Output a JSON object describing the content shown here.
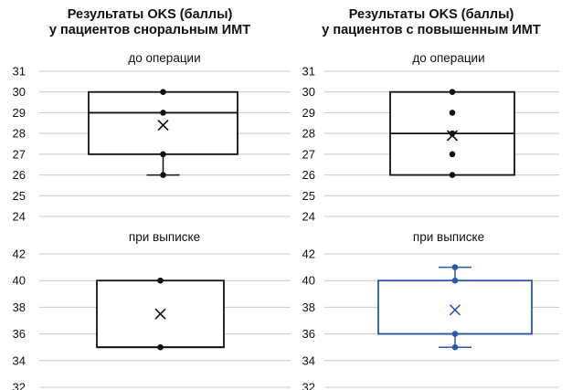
{
  "titles": [
    {
      "line1": "Результаты OKS (баллы)",
      "line2": "у пациентов сноральным ИМТ"
    },
    {
      "line1": "Результаты OKS (баллы)",
      "line2": "у пациентов с повышенным ИМТ"
    }
  ],
  "colors": {
    "black": "#111111",
    "blue": "#2b57a6",
    "grid": "#c8c8c8"
  },
  "chart_data": [
    {
      "type": "box",
      "title": "до операции",
      "group": "у пациентов с норальным ИМТ",
      "ylim": [
        24,
        31
      ],
      "yticks": [
        24,
        25,
        26,
        27,
        28,
        29,
        30,
        31
      ],
      "box": {
        "min": 26,
        "q1": 27,
        "median": 29,
        "q3": 30,
        "max": 30,
        "mean": 28.4
      },
      "points": [
        30,
        29,
        27,
        26
      ],
      "grid": true,
      "color": "#111111"
    },
    {
      "type": "box",
      "title": "до операции",
      "group": "у пациентов с повышенным ИМТ",
      "ylim": [
        24,
        31
      ],
      "yticks": [
        24,
        25,
        26,
        27,
        28,
        29,
        30,
        31
      ],
      "box": {
        "min": 26,
        "q1": 26,
        "median": 28,
        "q3": 30,
        "max": 30,
        "mean": 27.9
      },
      "points": [
        30,
        29,
        28,
        27,
        26
      ],
      "grid": true,
      "color": "#111111"
    },
    {
      "type": "box",
      "title": "при выписке",
      "group": "у пациентов с норальным ИМТ",
      "ylim": [
        32,
        42
      ],
      "yticks": [
        32,
        34,
        36,
        38,
        40,
        42
      ],
      "box": {
        "min": 35,
        "q1": 35,
        "median": 35,
        "q3": 40,
        "max": 40,
        "mean": 37.5
      },
      "points": [
        40,
        35
      ],
      "grid": true,
      "color": "#111111"
    },
    {
      "type": "box",
      "title": "при выписке",
      "group": "у пациентов с повышенным ИМТ",
      "ylim": [
        32,
        42
      ],
      "yticks": [
        32,
        34,
        36,
        38,
        40,
        42
      ],
      "box": {
        "min": 35,
        "q1": 36,
        "median": 36,
        "q3": 40,
        "max": 41,
        "mean": 37.8
      },
      "points": [
        41,
        40,
        36,
        35
      ],
      "grid": true,
      "color": "#2b57a6"
    }
  ]
}
